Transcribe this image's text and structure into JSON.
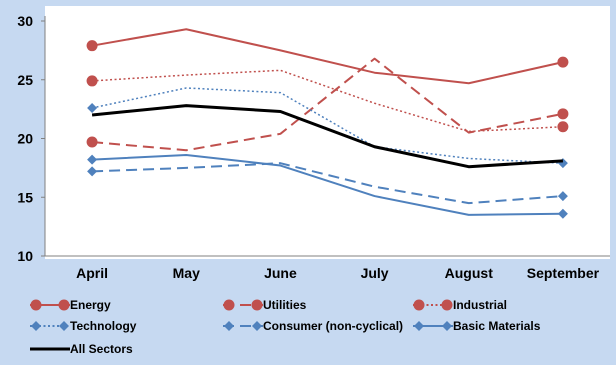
{
  "chart_data": {
    "type": "line",
    "categories": [
      "April",
      "May",
      "June",
      "July",
      "August",
      "September"
    ],
    "ylim": [
      10,
      30
    ],
    "yticks": [
      10,
      15,
      20,
      25,
      30
    ],
    "grid": false,
    "legend_position": "bottom",
    "series": [
      {
        "name": "Energy",
        "values": [
          27.9,
          29.3,
          27.5,
          25.6,
          24.7,
          26.5
        ],
        "color": "#c0504d",
        "style": "solid",
        "marker": "circle"
      },
      {
        "name": "Utilities",
        "values": [
          19.7,
          19.0,
          20.4,
          26.8,
          20.5,
          22.1
        ],
        "color": "#c0504d",
        "style": "dashed",
        "marker": "circle"
      },
      {
        "name": "Industrial",
        "values": [
          24.9,
          25.4,
          25.8,
          23.0,
          20.6,
          21.0
        ],
        "color": "#c0504d",
        "style": "dotted",
        "marker": "circle"
      },
      {
        "name": "Technology",
        "values": [
          22.6,
          24.3,
          23.9,
          19.3,
          18.3,
          17.9
        ],
        "color": "#4f81bd",
        "style": "dotted",
        "marker": "diamond"
      },
      {
        "name": "Consumer (non-cyclical)",
        "values": [
          17.2,
          17.5,
          17.9,
          15.9,
          14.5,
          15.1
        ],
        "color": "#4f81bd",
        "style": "dashed",
        "marker": "diamond"
      },
      {
        "name": "Basic Materials",
        "values": [
          18.2,
          18.6,
          17.7,
          15.1,
          13.5,
          13.6
        ],
        "color": "#4f81bd",
        "style": "solid",
        "marker": "diamond"
      },
      {
        "name": "All Sectors",
        "values": [
          22.0,
          22.8,
          22.3,
          19.3,
          17.6,
          18.1
        ],
        "color": "#000000",
        "style": "solid",
        "marker": "none"
      }
    ]
  }
}
